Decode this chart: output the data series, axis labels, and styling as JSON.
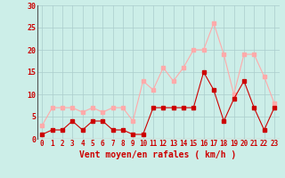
{
  "x": [
    0,
    1,
    2,
    3,
    4,
    5,
    6,
    7,
    8,
    9,
    10,
    11,
    12,
    13,
    14,
    15,
    16,
    17,
    18,
    19,
    20,
    21,
    22,
    23
  ],
  "wind_avg": [
    1,
    2,
    2,
    4,
    2,
    4,
    4,
    2,
    2,
    1,
    1,
    7,
    7,
    7,
    7,
    7,
    15,
    11,
    4,
    9,
    13,
    7,
    2,
    7
  ],
  "wind_gust": [
    3,
    7,
    7,
    7,
    6,
    7,
    6,
    7,
    7,
    4,
    13,
    11,
    16,
    13,
    16,
    20,
    20,
    26,
    19,
    10,
    19,
    19,
    14,
    8
  ],
  "avg_color": "#cc0000",
  "gust_color": "#ffaaaa",
  "bg_color": "#cceee8",
  "grid_color": "#aacccc",
  "xlabel": "Vent moyen/en rafales ( km/h )",
  "ylim": [
    0,
    30
  ],
  "yticks": [
    0,
    5,
    10,
    15,
    20,
    25,
    30
  ]
}
